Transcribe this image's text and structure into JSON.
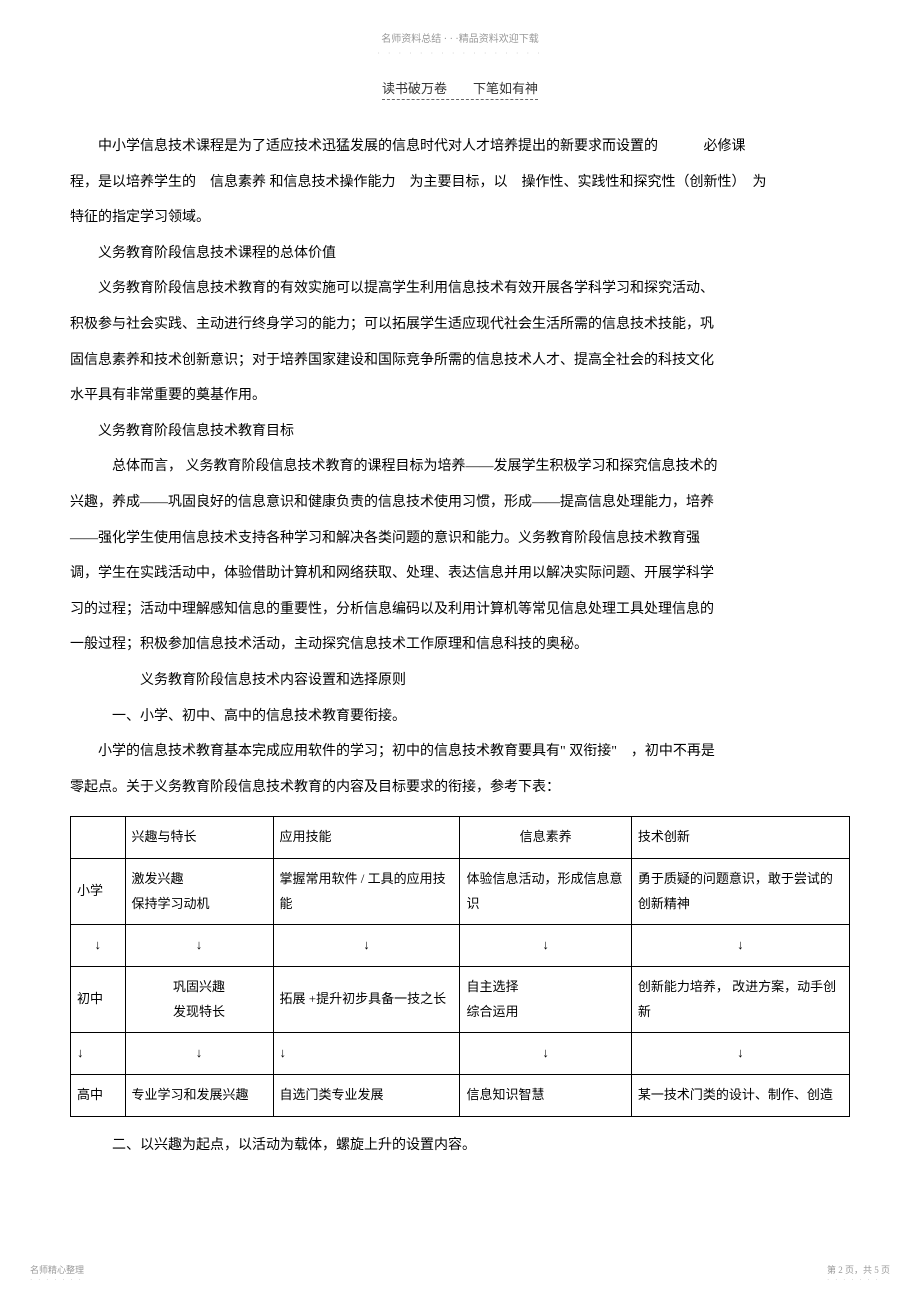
{
  "header": {
    "top_text": "名师资料总结 · · ·精品资料欢迎下载",
    "dots": "· · · · · · · · · · · · · · · ·",
    "main_text": "读书破万卷　　下笔如有神"
  },
  "paragraphs": {
    "p1a": "中小学信息技术课程是为了适应技术迅猛发展的信息时代对人才培养提出的新要求而设置的",
    "p1b": "必修课",
    "p1c": "程，是以培养学生的　信息素养 和信息技术操作能力　为主要目标，以　操作性、实践性和探究性（创新性）　为",
    "p1d": "特征的指定学习领域。",
    "p2": "义务教育阶段信息技术课程的总体价值",
    "p3": "义务教育阶段信息技术教育的有效实施可以提高学生利用信息技术有效开展各学科学习和探究活动、",
    "p3b": "积极参与社会实践、主动进行终身学习的能力；可以拓展学生适应现代社会生活所需的信息技术技能，巩",
    "p3c": "固信息素养和技术创新意识；对于培养国家建设和国际竞争所需的信息技术人才、提高全社会的科技文化",
    "p3d": "水平具有非常重要的奠基作用。",
    "p4": "义务教育阶段信息技术教育目标",
    "p5": "总体而言， 义务教育阶段信息技术教育的课程目标为培养——发展学生积极学习和探究信息技术的",
    "p5b": "兴趣，养成——巩固良好的信息意识和健康负责的信息技术使用习惯，形成——提高信息处理能力，培养",
    "p5c": "——强化学生使用信息技术支持各种学习和解决各类问题的意识和能力。义务教育阶段信息技术教育强",
    "p5d": "调，学生在实践活动中，体验借助计算机和网络获取、处理、表达信息并用以解决实际问题、开展学科学",
    "p5e": "习的过程；活动中理解感知信息的重要性，分析信息编码以及利用计算机等常见信息处理工具处理信息的",
    "p5f": "一般过程；积极参加信息技术活动，主动探究信息技术工作原理和信息科技的奥秘。",
    "p6": "义务教育阶段信息技术内容设置和选择原则",
    "p7": "一、小学、初中、高中的信息技术教育要衔接。",
    "p8": "小学的信息技术教育基本完成应用软件的学习；初中的信息技术教育要具有\" 双衔接\"　，初中不再是",
    "p8b": "零起点。关于义务教育阶段信息技术教育的内容及目标要求的衔接，参考下表：",
    "p9": "二、以兴趣为起点，以活动为载体，螺旋上升的设置内容。"
  },
  "table": {
    "headers": {
      "h1": "兴趣与特长",
      "h2": "应用技能",
      "h3": "信息素养",
      "h4": "技术创新"
    },
    "rows": {
      "primary_label": "小学",
      "primary": {
        "c1": "激发兴趣\n保持学习动机",
        "c2": "掌握常用软件 / 工具的应用技能",
        "c3": "体验信息活动，形成信息意识",
        "c4": "勇于质疑的问题意识，敢于尝试的创新精神"
      },
      "arrow": "↓",
      "middle_label": "初中",
      "middle": {
        "c1": "巩固兴趣\n发现特长",
        "c2": "拓展 +提升初步具备一技之长",
        "c3": "自主选择\n综合运用",
        "c4": "创新能力培养， 改进方案，动手创新"
      },
      "high_label": "高中",
      "high": {
        "c1": "专业学习和发展兴趣",
        "c2": "自选门类专业发展",
        "c3": "信息知识智慧",
        "c4": "某一技术门类的设计、制作、创造"
      }
    }
  },
  "footer": {
    "left": "名师精心整理",
    "right": "第 2 页，共 5 页",
    "dots": "· · · · · · ·"
  }
}
